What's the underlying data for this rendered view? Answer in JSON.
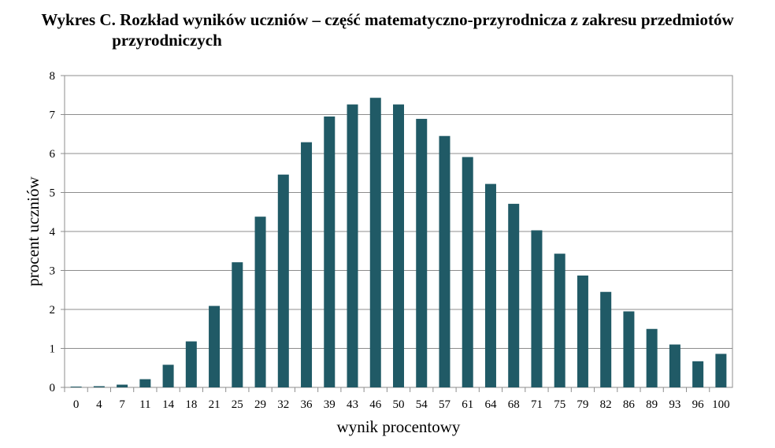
{
  "title_line1": "Wykres C. Rozkład wyników uczniów – część matematyczno-przyrodnicza z zakresu przedmiotów",
  "title_line2": "przyrodniczych",
  "chart_data": {
    "type": "bar",
    "title": "Wykres C. Rozkład wyników uczniów – część matematyczno-przyrodnicza z zakresu przedmiotów przyrodniczych",
    "xlabel": "wynik procentowy",
    "ylabel": "procent uczniów",
    "categories": [
      "0",
      "4",
      "7",
      "11",
      "14",
      "18",
      "21",
      "25",
      "29",
      "32",
      "36",
      "39",
      "43",
      "46",
      "50",
      "54",
      "57",
      "61",
      "64",
      "68",
      "71",
      "75",
      "79",
      "82",
      "86",
      "89",
      "93",
      "96",
      "100"
    ],
    "values": [
      0.02,
      0.03,
      0.07,
      0.21,
      0.58,
      1.18,
      2.09,
      3.21,
      4.38,
      5.46,
      6.29,
      6.95,
      7.26,
      7.43,
      7.26,
      6.89,
      6.45,
      5.91,
      5.22,
      4.71,
      4.03,
      3.43,
      2.87,
      2.45,
      1.95,
      1.5,
      1.1,
      0.67,
      0.86
    ],
    "ylim": [
      0,
      8
    ],
    "yticks": [
      0,
      1,
      2,
      3,
      4,
      5,
      6,
      7,
      8
    ],
    "grid": true,
    "bar_color": "#205a66"
  }
}
